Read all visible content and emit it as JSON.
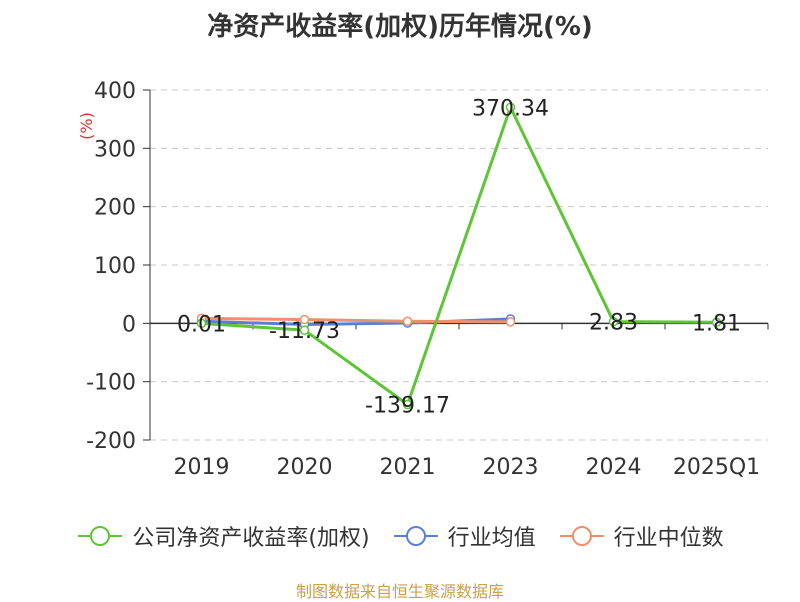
{
  "title": "净资产收益率(加权)历年情况(%)",
  "source": "制图数据来自恒生聚源数据库",
  "chart_data": {
    "type": "line",
    "title": "净资产收益率(加权)历年情况(%)",
    "ylabel": "(%)",
    "xlabel": "",
    "categories": [
      "2019",
      "2020",
      "2021",
      "2023",
      "2024",
      "2025Q1"
    ],
    "ylim": [
      -200,
      400
    ],
    "yticks": [
      -200,
      -100,
      0,
      100,
      200,
      300,
      400
    ],
    "grid": true,
    "legend_position": "bottom",
    "series": [
      {
        "name": "公司净资产收益率(加权)",
        "color": "#5dc536",
        "values": [
          0.01,
          -11.73,
          -139.17,
          370.34,
          2.83,
          1.81
        ],
        "labels": [
          "0.01",
          "-11.73",
          "-139.17",
          "370.34",
          "2.83",
          "1.81"
        ]
      },
      {
        "name": "行业均值",
        "color": "#5b7fd6",
        "values": [
          3.5,
          -2.0,
          0.5,
          7.5,
          null,
          null
        ]
      },
      {
        "name": "行业中位数",
        "color": "#f0906a",
        "values": [
          8.5,
          6.5,
          3.5,
          2.5,
          null,
          null
        ]
      }
    ]
  }
}
